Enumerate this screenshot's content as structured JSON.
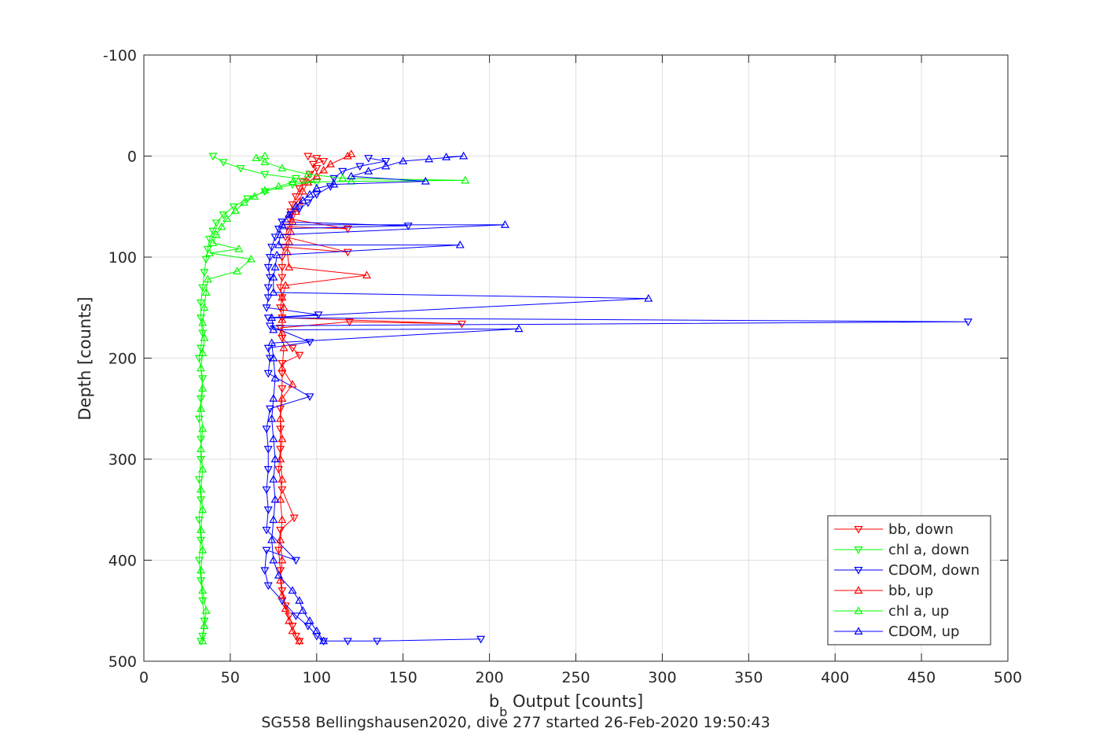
{
  "chart_data": {
    "type": "line",
    "xlabel": "b",
    "xlabel_sub": "b",
    "xlabel_rest": " Output [counts]",
    "ylabel": "Depth [counts]",
    "caption": "SG558 Bellingshausen2020, dive 277 started 26-Feb-2020 19:50:43",
    "xlim": [
      0,
      500
    ],
    "ylim": [
      500,
      -100
    ],
    "y_reversed": true,
    "xticks": [
      "0",
      "50",
      "100",
      "150",
      "200",
      "250",
      "300",
      "350",
      "400",
      "450",
      "500"
    ],
    "yticks": [
      "-100",
      "0",
      "100",
      "200",
      "300",
      "400",
      "500"
    ],
    "grid": true,
    "legend_placement": "bottom-right",
    "legend": [
      "bb, down",
      "chl a, down",
      "CDOM, down",
      "bb, up",
      "chl a, up",
      "CDOM, up"
    ],
    "series": [
      {
        "name": "bb, down",
        "color": "#ff0000",
        "marker": "triangle-down",
        "points": [
          [
            95,
            0
          ],
          [
            100,
            2
          ],
          [
            104,
            5
          ],
          [
            98,
            8
          ],
          [
            100,
            12
          ],
          [
            96,
            18
          ],
          [
            92,
            25
          ],
          [
            90,
            32
          ],
          [
            88,
            40
          ],
          [
            86,
            48
          ],
          [
            85,
            55
          ],
          [
            84,
            62
          ],
          [
            118,
            72
          ],
          [
            83,
            70
          ],
          [
            82,
            80
          ],
          [
            118,
            95
          ],
          [
            81,
            90
          ],
          [
            80,
            100
          ],
          [
            80,
            110
          ],
          [
            80,
            120
          ],
          [
            79,
            130
          ],
          [
            80,
            140
          ],
          [
            79,
            150
          ],
          [
            80,
            160
          ],
          [
            184,
            166
          ],
          [
            119,
            164
          ],
          [
            79,
            170
          ],
          [
            80,
            180
          ],
          [
            86,
            190
          ],
          [
            90,
            197
          ],
          [
            80,
            205
          ],
          [
            80,
            215
          ],
          [
            80,
            230
          ],
          [
            79,
            250
          ],
          [
            79,
            270
          ],
          [
            79,
            290
          ],
          [
            78,
            310
          ],
          [
            80,
            330
          ],
          [
            87,
            358
          ],
          [
            79,
            370
          ],
          [
            78,
            390
          ],
          [
            79,
            410
          ],
          [
            80,
            430
          ],
          [
            82,
            445
          ],
          [
            84,
            455
          ],
          [
            86,
            465
          ],
          [
            88,
            475
          ],
          [
            90,
            480
          ]
        ]
      },
      {
        "name": "chl a, down",
        "color": "#00ff00",
        "marker": "triangle-down",
        "points": [
          [
            40,
            0
          ],
          [
            46,
            6
          ],
          [
            56,
            12
          ],
          [
            70,
            18
          ],
          [
            88,
            22
          ],
          [
            100,
            26
          ],
          [
            86,
            28
          ],
          [
            70,
            35
          ],
          [
            60,
            42
          ],
          [
            52,
            50
          ],
          [
            46,
            58
          ],
          [
            42,
            66
          ],
          [
            40,
            74
          ],
          [
            38,
            82
          ],
          [
            37,
            92
          ],
          [
            36,
            102
          ],
          [
            35,
            115
          ],
          [
            34,
            130
          ],
          [
            33,
            145
          ],
          [
            33,
            160
          ],
          [
            34,
            175
          ],
          [
            33,
            190
          ],
          [
            32,
            200
          ],
          [
            34,
            220
          ],
          [
            33,
            240
          ],
          [
            32,
            260
          ],
          [
            33,
            280
          ],
          [
            33,
            300
          ],
          [
            32,
            320
          ],
          [
            33,
            340
          ],
          [
            32,
            360
          ],
          [
            33,
            380
          ],
          [
            32,
            400
          ],
          [
            33,
            420
          ],
          [
            34,
            440
          ],
          [
            35,
            460
          ],
          [
            34,
            475
          ],
          [
            33,
            480
          ]
        ]
      },
      {
        "name": "CDOM, down",
        "color": "#0000ff",
        "marker": "triangle-down",
        "points": [
          [
            130,
            2
          ],
          [
            140,
            5
          ],
          [
            125,
            10
          ],
          [
            115,
            15
          ],
          [
            110,
            22
          ],
          [
            108,
            30
          ],
          [
            100,
            38
          ],
          [
            95,
            46
          ],
          [
            90,
            52
          ],
          [
            85,
            58
          ],
          [
            80,
            65
          ],
          [
            153,
            69
          ],
          [
            78,
            72
          ],
          [
            76,
            80
          ],
          [
            74,
            90
          ],
          [
            73,
            100
          ],
          [
            72,
            110
          ],
          [
            73,
            120
          ],
          [
            72,
            130
          ],
          [
            72,
            140
          ],
          [
            71,
            150
          ],
          [
            101,
            157
          ],
          [
            72,
            160
          ],
          [
            477,
            164
          ],
          [
            73,
            168
          ],
          [
            96,
            184
          ],
          [
            72,
            190
          ],
          [
            73,
            200
          ],
          [
            72,
            215
          ],
          [
            96,
            238
          ],
          [
            73,
            250
          ],
          [
            71,
            270
          ],
          [
            72,
            290
          ],
          [
            72,
            310
          ],
          [
            71,
            330
          ],
          [
            72,
            350
          ],
          [
            71,
            370
          ],
          [
            88,
            400
          ],
          [
            71,
            390
          ],
          [
            70,
            410
          ],
          [
            72,
            425
          ],
          [
            80,
            440
          ],
          [
            88,
            455
          ],
          [
            95,
            465
          ],
          [
            100,
            475
          ],
          [
            104,
            480
          ],
          [
            118,
            480
          ],
          [
            135,
            480
          ],
          [
            195,
            478
          ]
        ]
      },
      {
        "name": "bb, up",
        "color": "#ff0000",
        "marker": "triangle-up",
        "points": [
          [
            90,
            480
          ],
          [
            86,
            470
          ],
          [
            84,
            460
          ],
          [
            82,
            448
          ],
          [
            80,
            435
          ],
          [
            79,
            420
          ],
          [
            80,
            400
          ],
          [
            79,
            380
          ],
          [
            80,
            360
          ],
          [
            79,
            340
          ],
          [
            80,
            320
          ],
          [
            79,
            300
          ],
          [
            80,
            280
          ],
          [
            79,
            260
          ],
          [
            80,
            240
          ],
          [
            86,
            226
          ],
          [
            80,
            210
          ],
          [
            81,
            190
          ],
          [
            80,
            175
          ],
          [
            80,
            162
          ],
          [
            81,
            150
          ],
          [
            80,
            140
          ],
          [
            82,
            128
          ],
          [
            129,
            118
          ],
          [
            84,
            110
          ],
          [
            83,
            95
          ],
          [
            84,
            85
          ],
          [
            85,
            75
          ],
          [
            86,
            65
          ],
          [
            88,
            55
          ],
          [
            90,
            45
          ],
          [
            92,
            35
          ],
          [
            95,
            26
          ],
          [
            100,
            20
          ],
          [
            104,
            14
          ],
          [
            108,
            8
          ],
          [
            118,
            0
          ],
          [
            120,
            -2
          ]
        ]
      },
      {
        "name": "chl a, up",
        "color": "#00ff00",
        "marker": "triangle-up",
        "points": [
          [
            34,
            480
          ],
          [
            35,
            465
          ],
          [
            36,
            450
          ],
          [
            34,
            430
          ],
          [
            33,
            410
          ],
          [
            34,
            390
          ],
          [
            33,
            370
          ],
          [
            34,
            350
          ],
          [
            33,
            330
          ],
          [
            34,
            310
          ],
          [
            33,
            290
          ],
          [
            34,
            270
          ],
          [
            33,
            250
          ],
          [
            34,
            230
          ],
          [
            33,
            210
          ],
          [
            34,
            195
          ],
          [
            35,
            180
          ],
          [
            34,
            165
          ],
          [
            35,
            150
          ],
          [
            36,
            135
          ],
          [
            37,
            122
          ],
          [
            54,
            114
          ],
          [
            62,
            102
          ],
          [
            38,
            96
          ],
          [
            55,
            92
          ],
          [
            40,
            86
          ],
          [
            42,
            78
          ],
          [
            45,
            70
          ],
          [
            48,
            62
          ],
          [
            53,
            54
          ],
          [
            58,
            46
          ],
          [
            64,
            40
          ],
          [
            70,
            34
          ],
          [
            78,
            30
          ],
          [
            86,
            26
          ],
          [
            120,
            25
          ],
          [
            186,
            24
          ],
          [
            115,
            22
          ],
          [
            95,
            18
          ],
          [
            80,
            12
          ],
          [
            70,
            6
          ],
          [
            65,
            2
          ],
          [
            70,
            0
          ]
        ]
      },
      {
        "name": "CDOM, up",
        "color": "#0000ff",
        "marker": "triangle-up",
        "points": [
          [
            104,
            480
          ],
          [
            100,
            470
          ],
          [
            96,
            460
          ],
          [
            92,
            450
          ],
          [
            90,
            440
          ],
          [
            86,
            430
          ],
          [
            78,
            415
          ],
          [
            75,
            400
          ],
          [
            74,
            380
          ],
          [
            75,
            360
          ],
          [
            76,
            340
          ],
          [
            75,
            320
          ],
          [
            76,
            300
          ],
          [
            75,
            280
          ],
          [
            74,
            260
          ],
          [
            75,
            240
          ],
          [
            76,
            220
          ],
          [
            75,
            200
          ],
          [
            74,
            185
          ],
          [
            217,
            171
          ],
          [
            75,
            172
          ],
          [
            74,
            160
          ],
          [
            292,
            141
          ],
          [
            75,
            135
          ],
          [
            75,
            120
          ],
          [
            76,
            110
          ],
          [
            77,
            98
          ],
          [
            183,
            88
          ],
          [
            78,
            88
          ],
          [
            79,
            78
          ],
          [
            209,
            68
          ],
          [
            80,
            68
          ],
          [
            84,
            58
          ],
          [
            88,
            50
          ],
          [
            92,
            44
          ],
          [
            96,
            38
          ],
          [
            100,
            32
          ],
          [
            110,
            28
          ],
          [
            163,
            25
          ],
          [
            120,
            20
          ],
          [
            130,
            15
          ],
          [
            140,
            10
          ],
          [
            150,
            5
          ],
          [
            165,
            3
          ],
          [
            185,
            0
          ],
          [
            175,
            1
          ]
        ]
      }
    ]
  }
}
